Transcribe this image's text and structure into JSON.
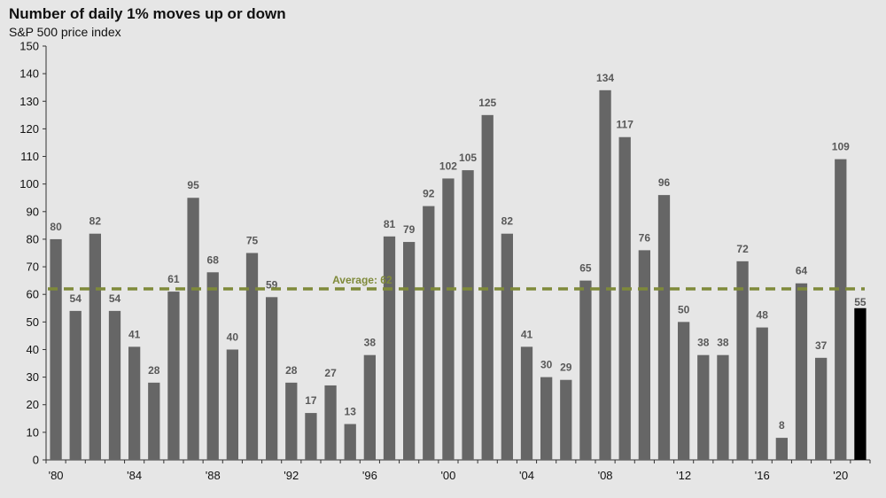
{
  "chart_data": {
    "type": "bar",
    "title": "Number of daily 1% moves up or down",
    "subtitle": "S&P 500 price index",
    "categories": [
      "1980",
      "1981",
      "1982",
      "1983",
      "1984",
      "1985",
      "1986",
      "1987",
      "1988",
      "1989",
      "1990",
      "1991",
      "1992",
      "1993",
      "1994",
      "1995",
      "1996",
      "1997",
      "1998",
      "1999",
      "2000",
      "2001",
      "2002",
      "2003",
      "2004",
      "2005",
      "2006",
      "2007",
      "2008",
      "2009",
      "2010",
      "2011",
      "2012",
      "2013",
      "2014",
      "2015",
      "2016",
      "2017",
      "2018",
      "2019",
      "2020",
      "2021"
    ],
    "values": [
      80,
      54,
      82,
      54,
      41,
      28,
      61,
      95,
      68,
      40,
      75,
      59,
      28,
      17,
      27,
      13,
      38,
      81,
      79,
      92,
      102,
      105,
      125,
      82,
      41,
      30,
      29,
      65,
      134,
      117,
      76,
      96,
      50,
      38,
      38,
      72,
      48,
      8,
      64,
      37,
      109,
      55
    ],
    "data_labels": [
      "80",
      "54",
      "82",
      "54",
      "41",
      "28",
      "61",
      "95",
      "68",
      "40",
      "75",
      "59",
      "28",
      "17",
      "27",
      "13",
      "38",
      "81",
      "79",
      "92",
      "102",
      "105",
      "125",
      "82",
      "41",
      "30",
      "29",
      "65",
      "134",
      "117",
      "76",
      "96",
      "50",
      "38",
      "38",
      "72",
      "48",
      "8",
      "64",
      "37",
      "109",
      "55"
    ],
    "x_tick_labels": [
      "'80",
      "'84",
      "'88",
      "'92",
      "'96",
      "'00",
      "'04",
      "'08",
      "'12",
      "'16",
      "'20"
    ],
    "x_tick_indices": [
      0,
      4,
      8,
      12,
      16,
      20,
      24,
      28,
      32,
      36,
      40
    ],
    "y_ticks": [
      0,
      10,
      20,
      30,
      40,
      50,
      60,
      70,
      80,
      90,
      100,
      110,
      120,
      130,
      140,
      150
    ],
    "ylim": [
      0,
      150
    ],
    "average": {
      "value": 62,
      "label": "Average: 62",
      "color": "#7f8a3a"
    },
    "colors": {
      "bar": "#666666",
      "highlight_bar": "#000000",
      "background": "#e6e6e6"
    },
    "highlight_index": 41,
    "grid": false,
    "legend": "none"
  }
}
